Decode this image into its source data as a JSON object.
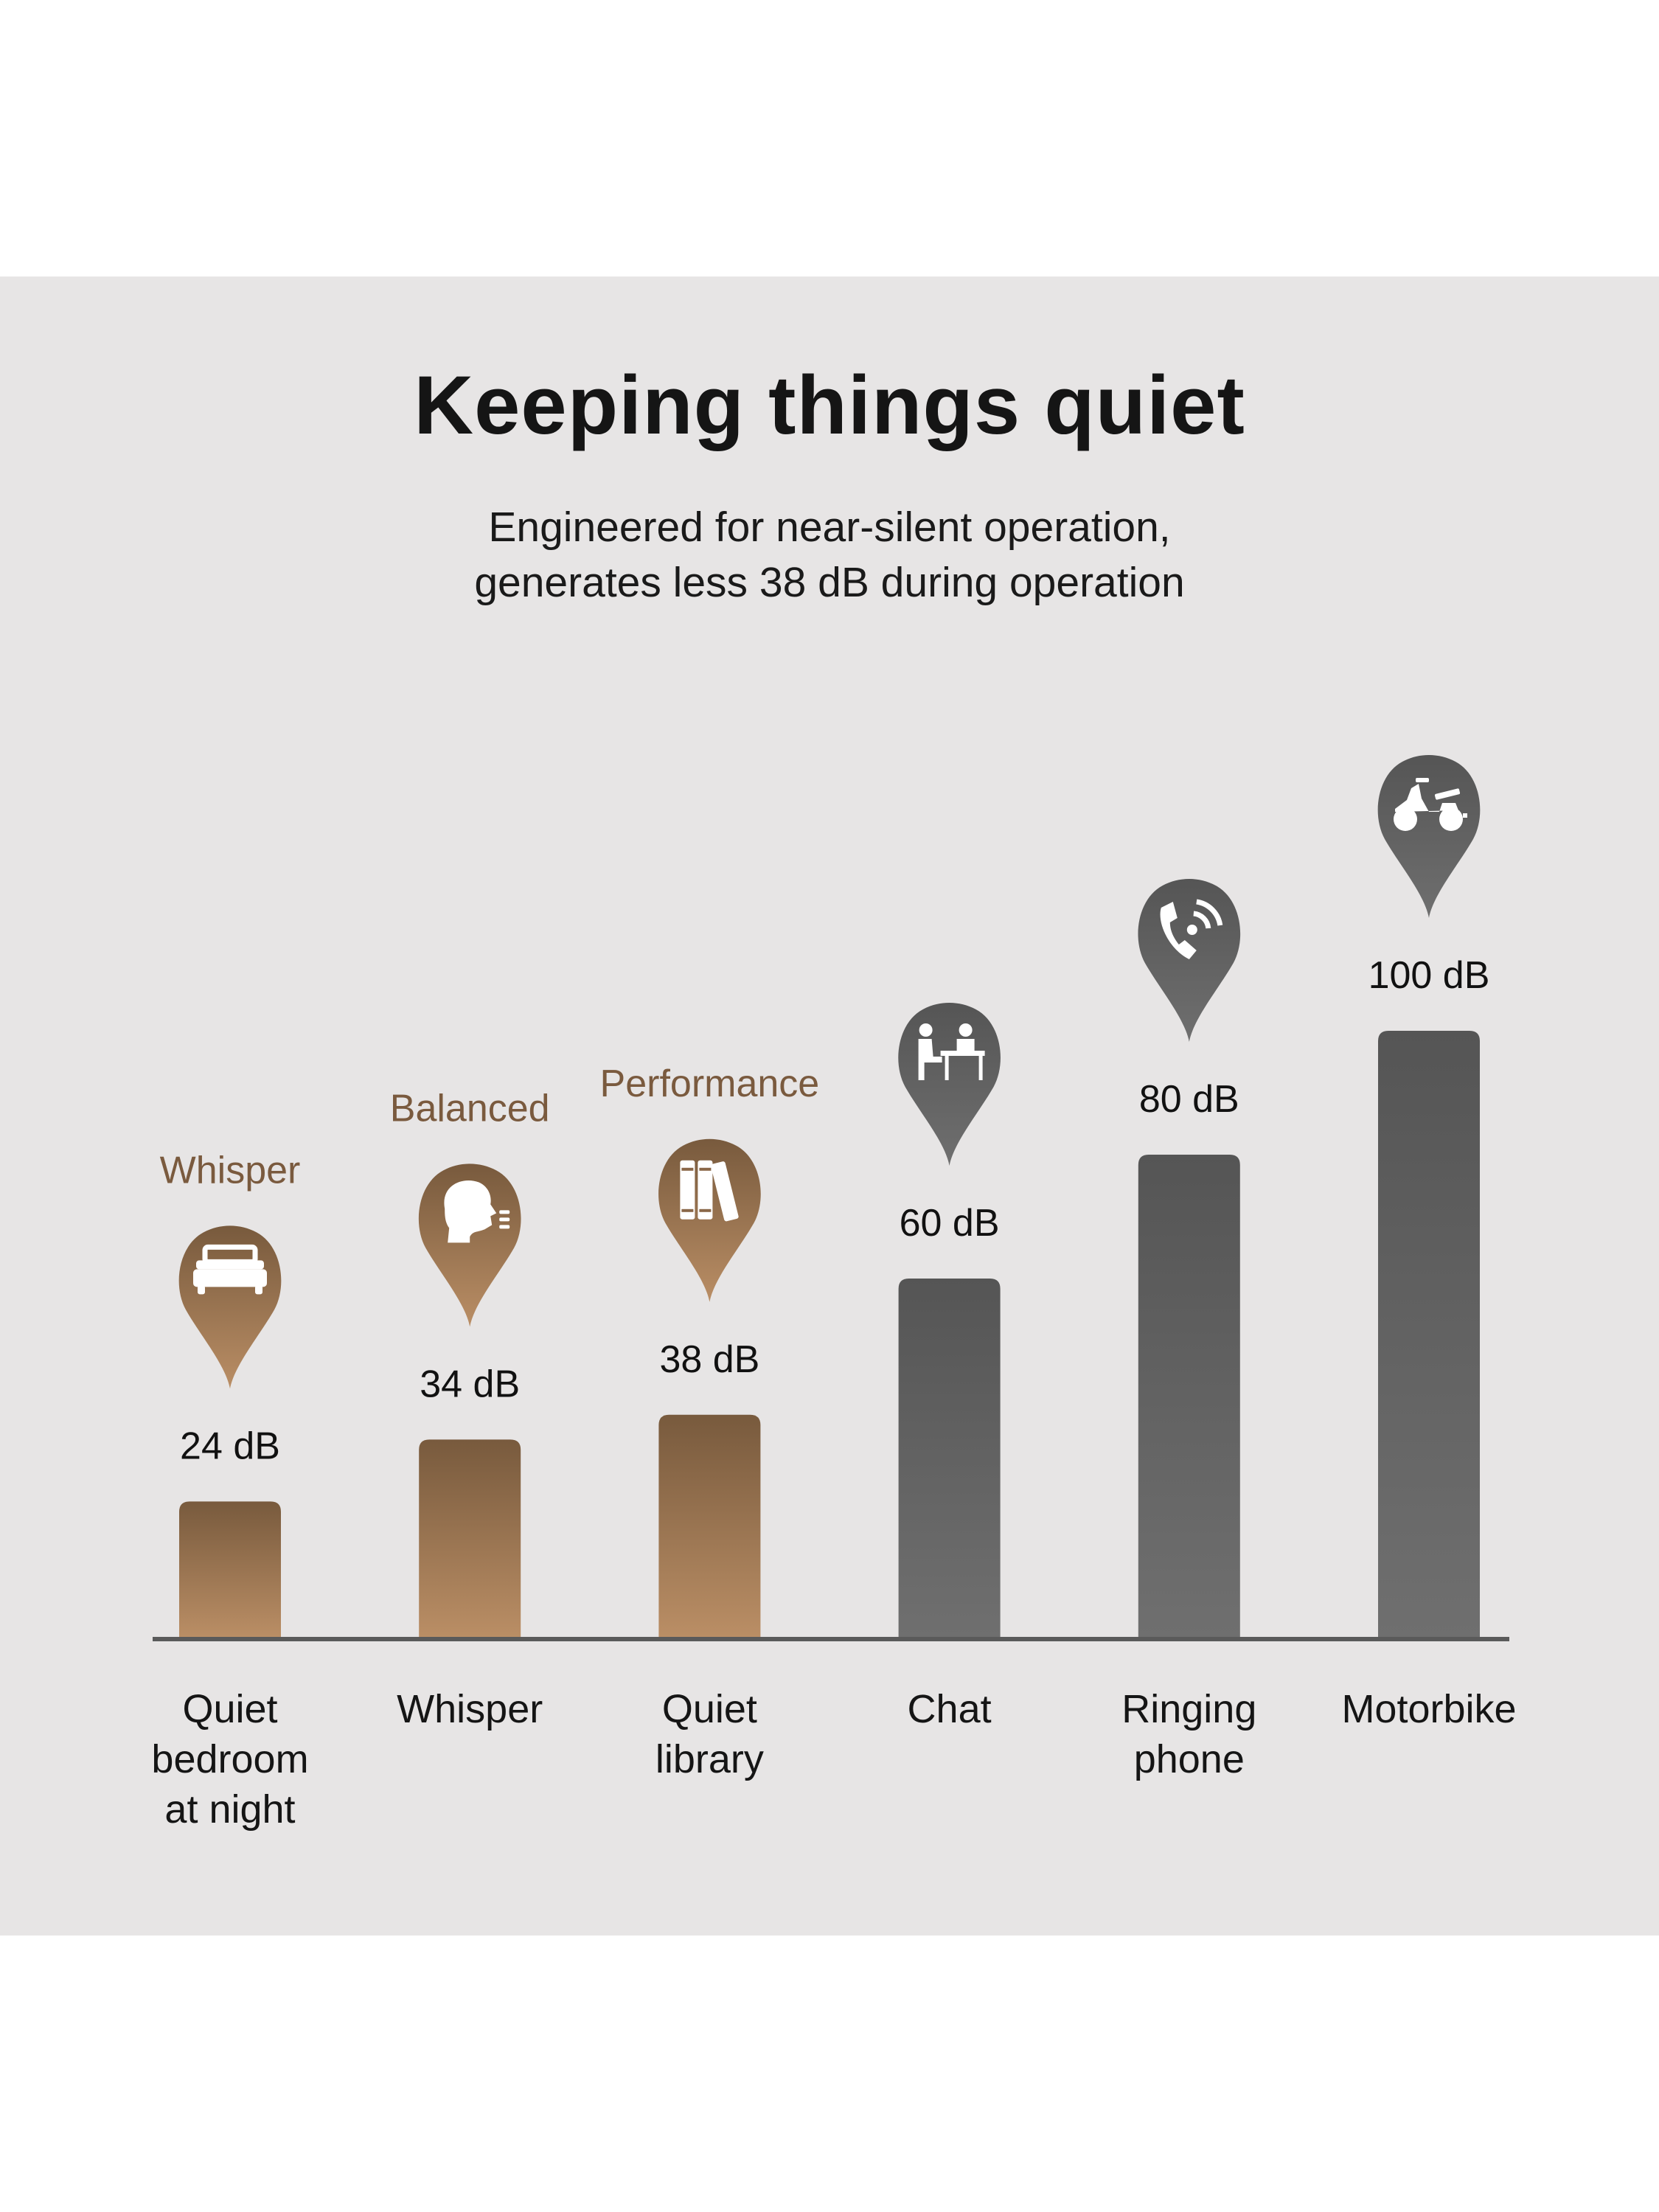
{
  "title": "Keeping things quiet",
  "subtitle_lines": [
    "Engineered for near-silent operation,",
    "generates less 38 dB during operation"
  ],
  "colors": {
    "background": "#e7e5e5",
    "copper_top": "#785a3d",
    "copper_bottom": "#ba8e65",
    "gray_top": "#555555",
    "gray_bottom": "#6f6f6f",
    "axis": "#5a5a5a",
    "mode_label": "#7a5a3e"
  },
  "chart_data": {
    "type": "bar",
    "title": "Keeping things quiet",
    "xlabel": "",
    "ylabel": "",
    "unit": "dB",
    "ylim": [
      0,
      100
    ],
    "grid": false,
    "categories": [
      [
        "Quiet",
        "bedroom",
        "at night"
      ],
      [
        "Whisper"
      ],
      [
        "Quiet",
        "library"
      ],
      [
        "Chat"
      ],
      [
        "Ringing",
        "phone"
      ],
      [
        "Motorbike"
      ]
    ],
    "values": [
      24,
      34,
      38,
      60,
      80,
      100
    ],
    "value_labels": [
      "24 dB",
      "34 dB",
      "38 dB",
      "60 dB",
      "80 dB",
      "100 dB"
    ],
    "mode_labels": [
      "Whisper",
      "Balanced",
      "Performance",
      "",
      "",
      ""
    ],
    "icons": [
      "bed-icon",
      "whisper-head-icon",
      "books-icon",
      "meeting-desk-icon",
      "ringing-phone-icon",
      "motorbike-icon"
    ],
    "styles": [
      "copper",
      "copper",
      "copper",
      "gray",
      "gray",
      "gray"
    ]
  }
}
